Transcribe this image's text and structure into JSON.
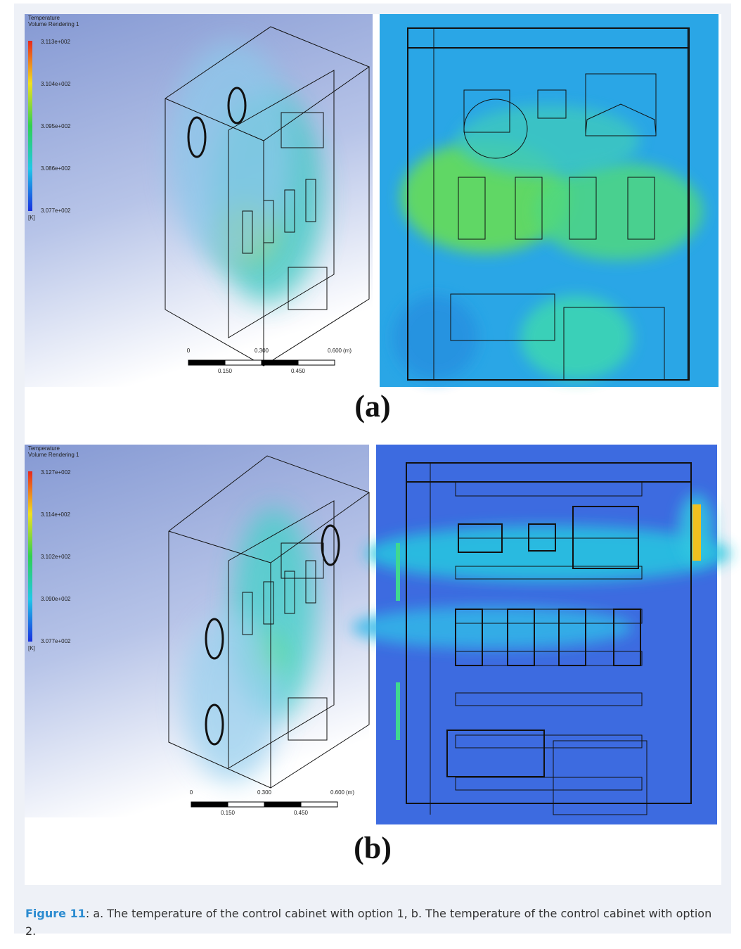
{
  "figure": {
    "panels": [
      {
        "label": "(a)",
        "legend": {
          "title": "Temperature",
          "subtitle": "Volume Rendering 1",
          "ticks": [
            "3.113e+002",
            "3.104e+002",
            "3.095e+002",
            "3.086e+002",
            "3.077e+002"
          ],
          "unit": "[K]"
        },
        "scale": {
          "ticks": [
            "0",
            "0.300",
            "0.600"
          ],
          "unit": "(m)",
          "minor_ticks": [
            "0.150",
            "0.450"
          ]
        }
      },
      {
        "label": "(b)",
        "legend": {
          "title": "Temperature",
          "subtitle": "Volume Rendering 1",
          "ticks": [
            "3.127e+002",
            "3.114e+002",
            "3.102e+002",
            "3.090e+002",
            "3.077e+002"
          ],
          "unit": "[K]"
        },
        "scale": {
          "ticks": [
            "0",
            "0.300",
            "0.600"
          ],
          "unit": "(m)",
          "minor_ticks": [
            "0.150",
            "0.450"
          ]
        }
      }
    ],
    "caption": {
      "label": "Figure 11",
      "text": ": a. The temperature of the control cabinet with option 1, b. The temperature of the control cabinet with option 2."
    }
  }
}
